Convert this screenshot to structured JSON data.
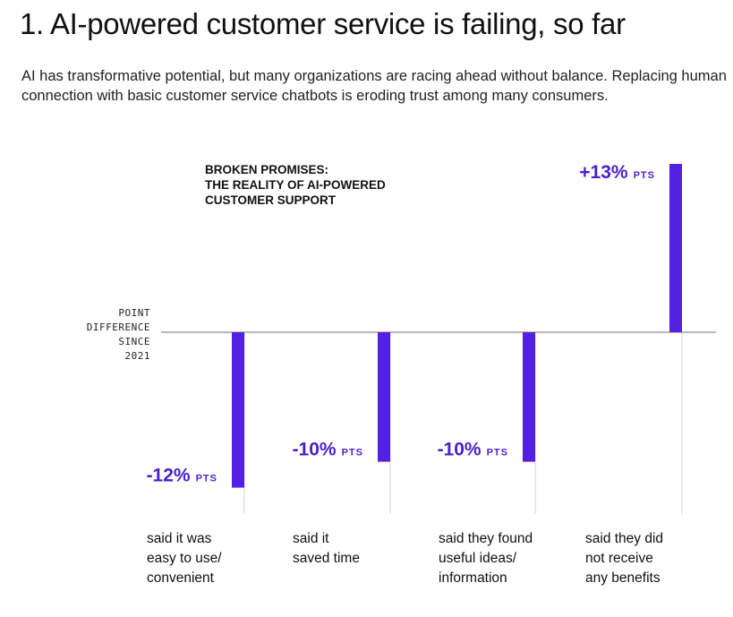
{
  "heading": "1. AI-powered customer service is failing, so far",
  "intro": "AI has transformative potential, but many organizations are racing ahead without balance. Replacing human connection with basic customer service chatbots is eroding trust among many consumers.",
  "colors": {
    "bar": "#5120e0",
    "label": "#4b1fcf",
    "baseline": "#8c8c8c",
    "guide": "#d6d6d6"
  },
  "chart_data": {
    "type": "bar",
    "title_lines": [
      "BROKEN PROMISES:",
      "THE REALITY OF AI-POWERED",
      "CUSTOMER SUPPORT"
    ],
    "ylabel_lines": [
      "POINT",
      "DIFFERENCE",
      "SINCE",
      "2021"
    ],
    "unit": "PTS",
    "ylim": [
      -13,
      13
    ],
    "categories": [
      [
        "said it was",
        "easy to use/",
        "convenient"
      ],
      [
        "said it",
        "saved time"
      ],
      [
        "said they found",
        "useful ideas/",
        "information"
      ],
      [
        "said they did",
        "not receive",
        "any benefits"
      ]
    ],
    "values": [
      -12,
      -10,
      -10,
      13
    ],
    "value_labels": [
      "-12%",
      "-10%",
      "-10%",
      "+13%"
    ]
  }
}
